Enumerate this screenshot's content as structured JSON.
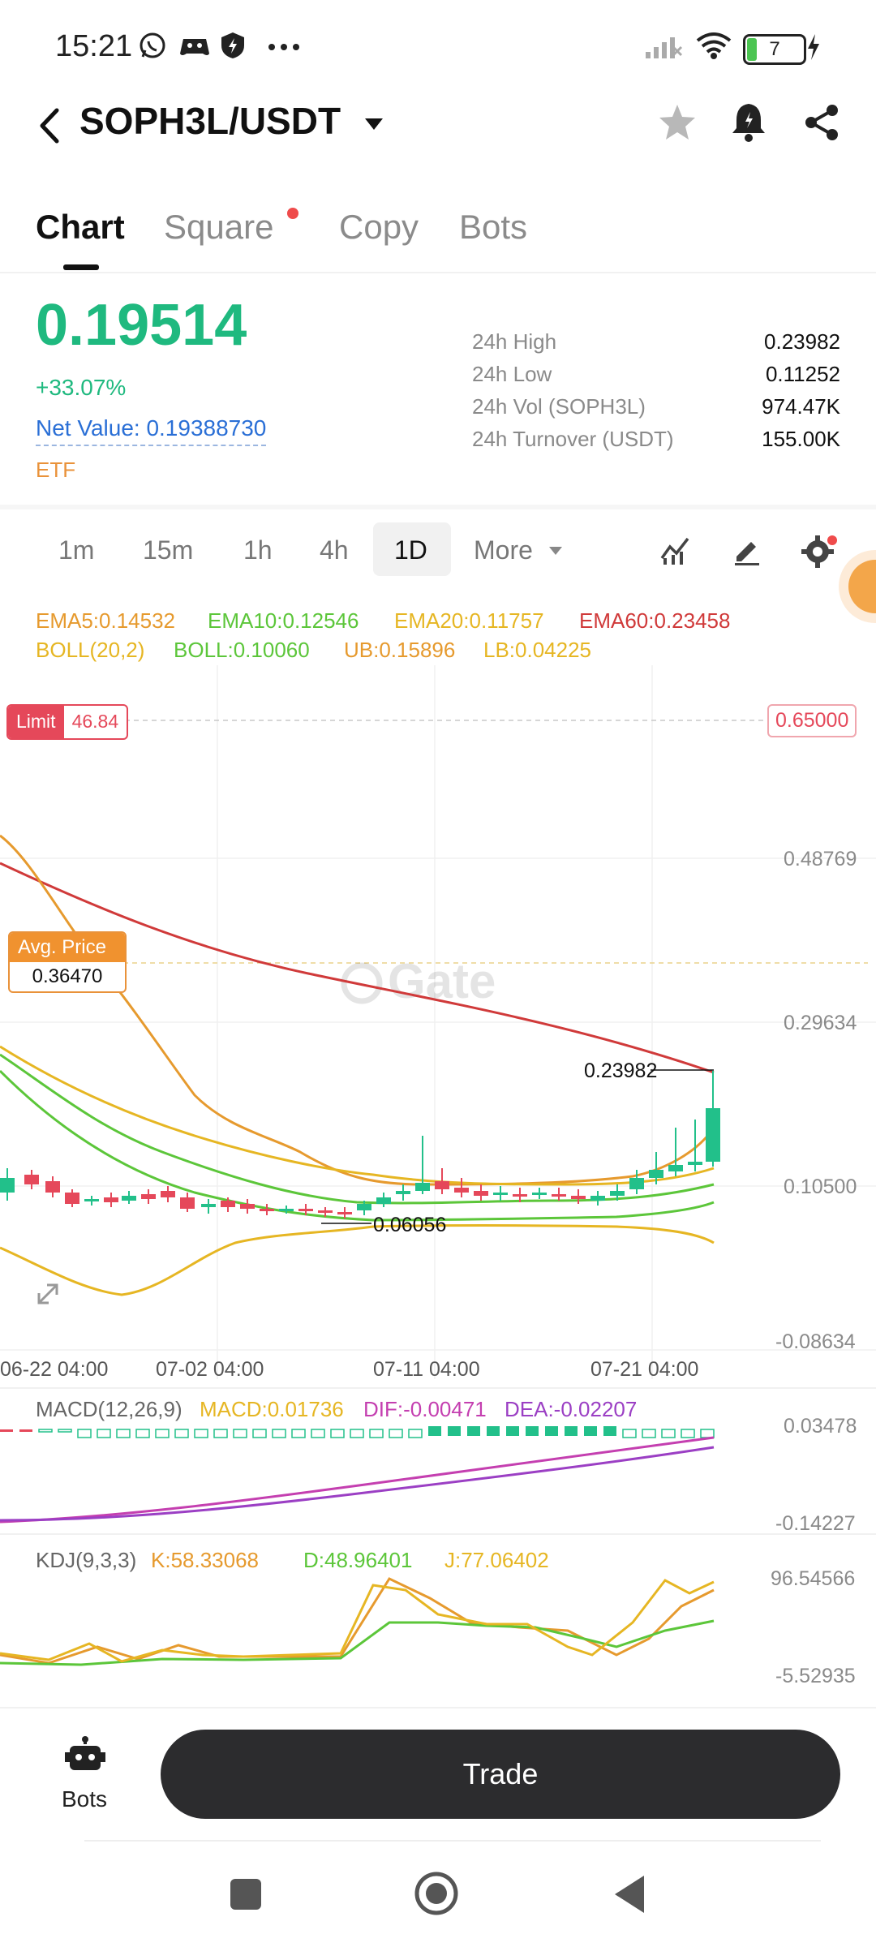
{
  "status_bar": {
    "time": "15:21",
    "battery": "7"
  },
  "header": {
    "pair": "SOPH3L/USDT"
  },
  "tabs": [
    {
      "label": "Chart",
      "active": true
    },
    {
      "label": "Square",
      "active": false,
      "has_dot": true
    },
    {
      "label": "Copy",
      "active": false
    },
    {
      "label": "Bots",
      "active": false
    }
  ],
  "ticker": {
    "last_price": "0.19514",
    "change": "+33.07%",
    "net_value": "Net Value: 0.19388730",
    "tag": "ETF",
    "stats": [
      {
        "label": "24h High",
        "value": "0.23982"
      },
      {
        "label": "24h Low",
        "value": "0.11252"
      },
      {
        "label": "24h Vol (SOPH3L)",
        "value": "974.47K"
      },
      {
        "label": "24h Turnover (USDT)",
        "value": "155.00K"
      }
    ]
  },
  "intervals": {
    "items": [
      "1m",
      "15m",
      "1h",
      "4h",
      "1D"
    ],
    "selected": "1D",
    "more": "More"
  },
  "indicators": {
    "ema5": "EMA5:0.14532",
    "ema10": "EMA10:0.12546",
    "ema20": "EMA20:0.11757",
    "ema60": "EMA60:0.23458",
    "boll": "BOLL(20,2)",
    "boll_mid": "BOLL:0.10060",
    "ub": "UB:0.15896",
    "lb": "LB:0.04225",
    "colors": {
      "ema5": "#e69a2e",
      "ema10": "#5cc63a",
      "ema20": "#e6b623",
      "ema60": "#d03a3a"
    }
  },
  "main_chart": {
    "limit_label": "Limit",
    "limit_value": "46.84",
    "limit_price": "0.65000",
    "avg_label": "Avg. Price",
    "avg_value": "0.36470",
    "y_ticks": [
      "0.48769",
      "0.29634",
      "0.10500",
      "-0.08634"
    ],
    "high_marker": "0.23982",
    "low_marker": "0.06056",
    "dates": [
      "06-22 04:00",
      "07-02 04:00",
      "07-11 04:00",
      "07-21 04:00"
    ],
    "watermark": "Gate",
    "up_color": "#22c08a",
    "down_color": "#e5485a"
  },
  "macd": {
    "title": "MACD(12,26,9)",
    "macd": "MACD:0.01736",
    "dif": "DIF:-0.00471",
    "dea": "DEA:-0.02207",
    "y_ticks": [
      "0.03478",
      "-0.14227"
    ]
  },
  "kdj": {
    "title": "KDJ(9,3,3)",
    "k": "K:58.33068",
    "d": "D:48.96401",
    "j": "J:77.06402",
    "y_ticks": [
      "96.54566",
      "-5.52935"
    ]
  },
  "bottom": {
    "bots_label": "Bots",
    "trade_label": "Trade"
  }
}
